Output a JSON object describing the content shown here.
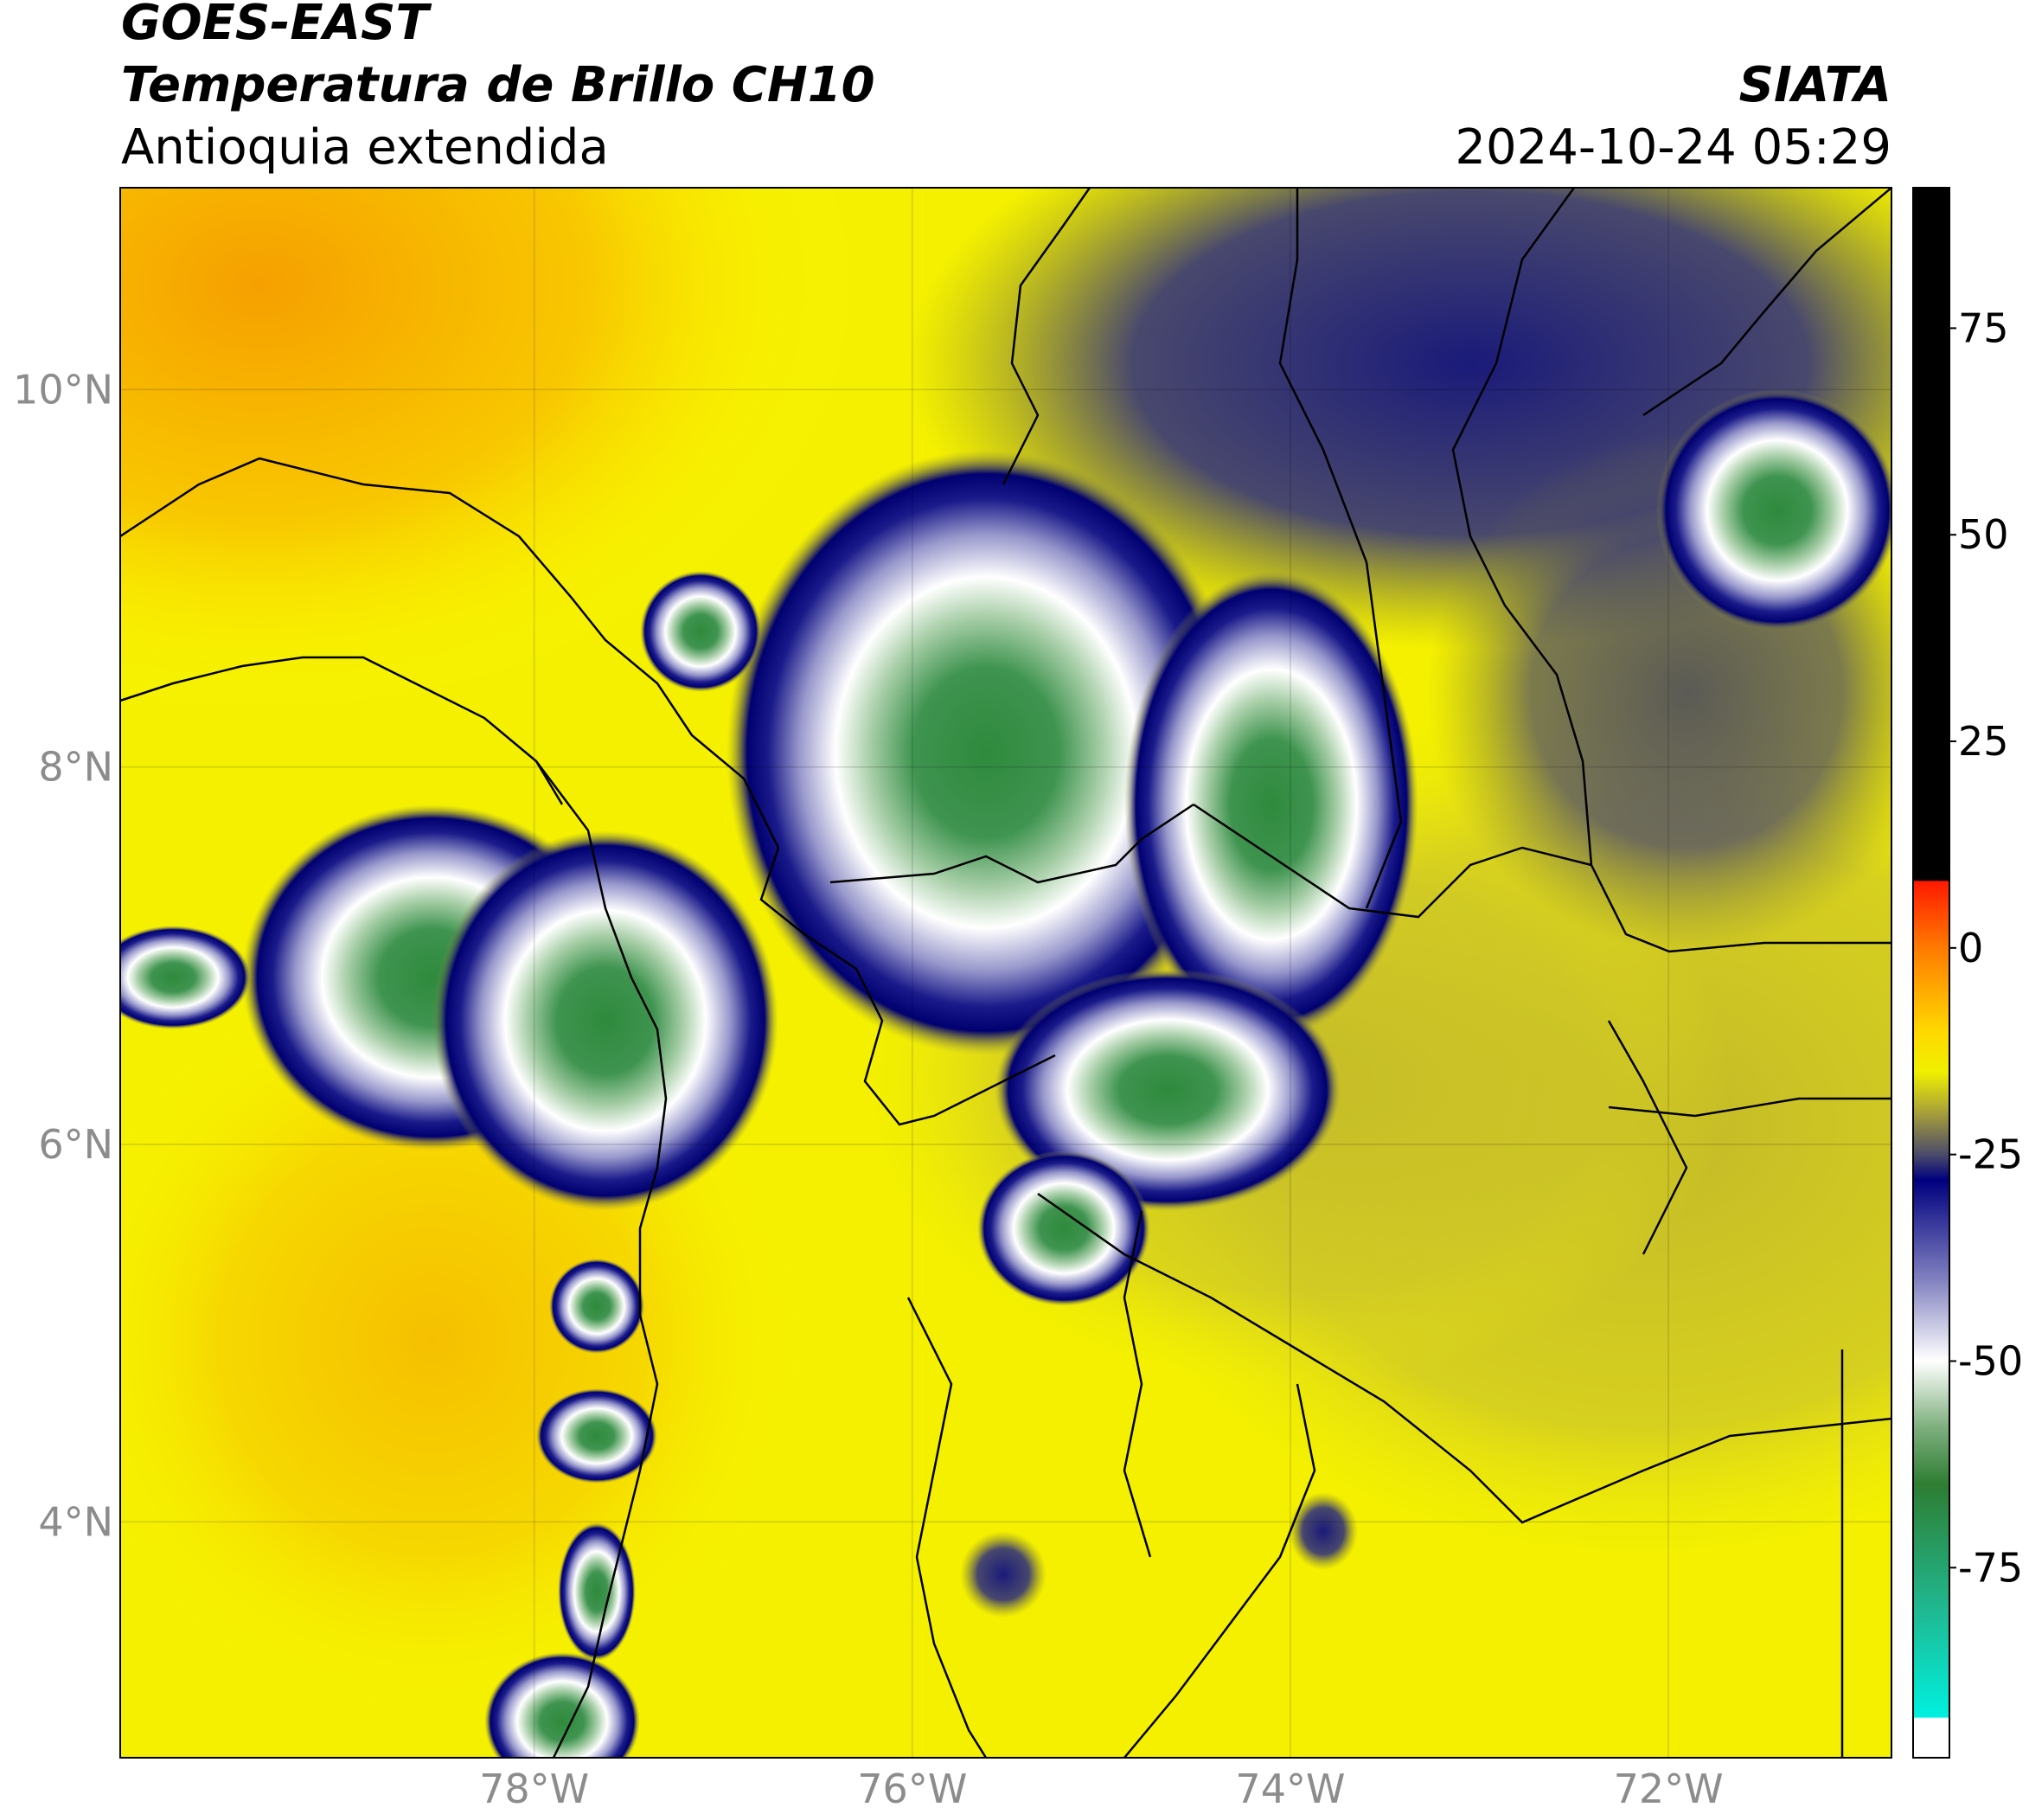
{
  "header": {
    "title": "GOES-EAST",
    "subtitle": "Temperatura de Brillo CH10",
    "region": "Antioquia extendida",
    "source": "SIATA",
    "timestamp": "2024-10-24 05:29"
  },
  "map": {
    "xlim": [
      -80.19,
      -70.82
    ],
    "ylim": [
      2.75,
      11.07
    ],
    "xticks": [
      {
        "value": -78,
        "label": "78°W"
      },
      {
        "value": -76,
        "label": "76°W"
      },
      {
        "value": -74,
        "label": "74°W"
      },
      {
        "value": -72,
        "label": "72°W"
      }
    ],
    "yticks": [
      {
        "value": 10,
        "label": "10°N"
      },
      {
        "value": 8,
        "label": "8°N"
      },
      {
        "value": 6,
        "label": "6°N"
      },
      {
        "value": 4,
        "label": "4°N"
      }
    ],
    "grid": true
  },
  "colorbar": {
    "lim": [
      -98,
      92
    ],
    "ticks": [
      75,
      50,
      25,
      0,
      -25,
      -50,
      -75
    ]
  }
}
